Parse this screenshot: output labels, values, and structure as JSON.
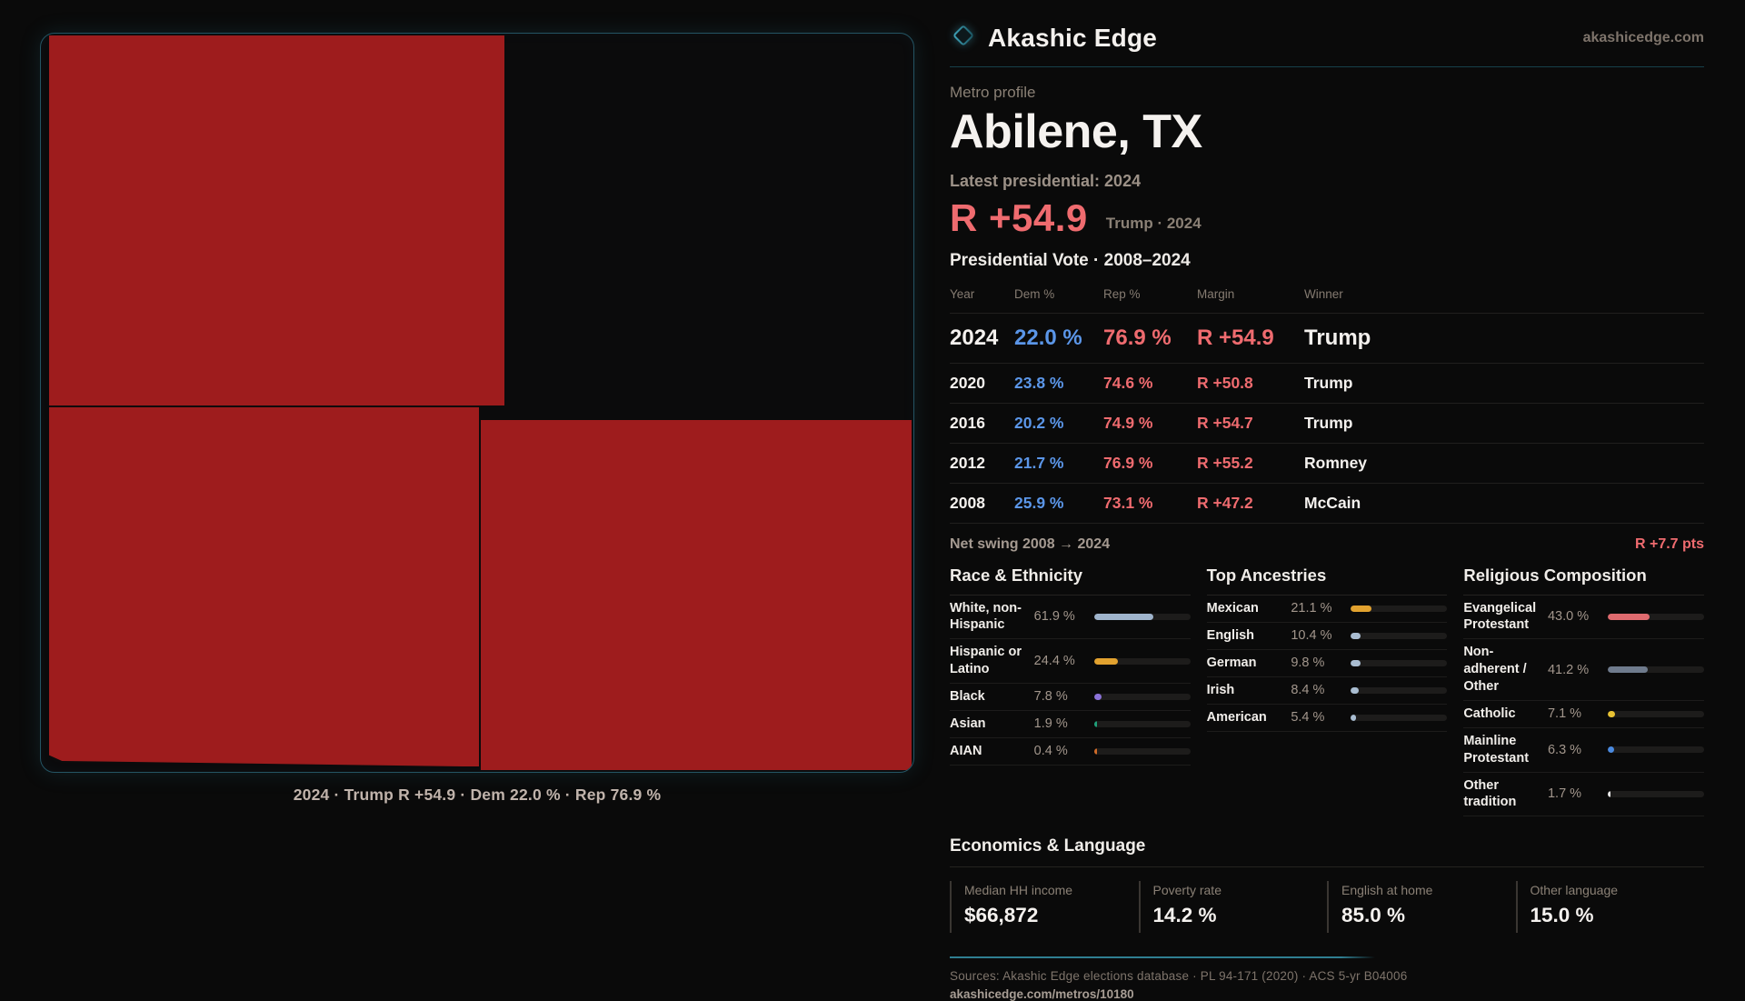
{
  "colors": {
    "accent_red": "#ef6b6f",
    "dem_blue": "#5b96e8",
    "map_red": "#9e1c1d",
    "teal_line": "#2f7e91"
  },
  "header": {
    "brand": "Akashic Edge",
    "site": "akashicedge.com"
  },
  "profile": {
    "kicker": "Metro profile",
    "title": "Abilene, TX",
    "latest_label": "Latest presidential: 2024",
    "headline_margin": "R +54.9",
    "headline_sub": "Trump · 2024"
  },
  "map": {
    "caption": "2024 · Trump R +54.9 · Dem 22.0 % · Rep 76.9 %",
    "counties": [
      "county-northwest",
      "county-southwest",
      "county-southeast"
    ]
  },
  "vote_table": {
    "title": "Presidential Vote · 2008–2024",
    "columns": [
      "Year",
      "Dem %",
      "Rep %",
      "Margin",
      "Winner"
    ],
    "rows": [
      {
        "year": "2024",
        "dem": "22.0 %",
        "rep": "76.9 %",
        "margin": "R +54.9",
        "winner": "Trump",
        "emphasis": true
      },
      {
        "year": "2020",
        "dem": "23.8 %",
        "rep": "74.6 %",
        "margin": "R +50.8",
        "winner": "Trump",
        "emphasis": false
      },
      {
        "year": "2016",
        "dem": "20.2 %",
        "rep": "74.9 %",
        "margin": "R +54.7",
        "winner": "Trump",
        "emphasis": false
      },
      {
        "year": "2012",
        "dem": "21.7 %",
        "rep": "76.9 %",
        "margin": "R +55.2",
        "winner": "Romney",
        "emphasis": false
      },
      {
        "year": "2008",
        "dem": "25.9 %",
        "rep": "73.1 %",
        "margin": "R +47.2",
        "winner": "McCain",
        "emphasis": false
      }
    ]
  },
  "net_swing": {
    "label": "Net swing 2008 → 2024",
    "value": "R +7.7 pts"
  },
  "demographics": [
    {
      "title": "Race & Ethnicity",
      "rows": [
        {
          "label": "White, non-Hispanic",
          "value": "61.9 %",
          "pct": 61.9,
          "color": "#9fb4cc"
        },
        {
          "label": "Hispanic or Latino",
          "value": "24.4 %",
          "pct": 24.4,
          "color": "#e2a22f"
        },
        {
          "label": "Black",
          "value": "7.8 %",
          "pct": 7.8,
          "color": "#8b72d8"
        },
        {
          "label": "Asian",
          "value": "1.9 %",
          "pct": 1.9,
          "color": "#1fa07a"
        },
        {
          "label": "AIAN",
          "value": "0.4 %",
          "pct": 0.4,
          "color": "#cf6b28"
        }
      ]
    },
    {
      "title": "Top Ancestries",
      "rows": [
        {
          "label": "Mexican",
          "value": "21.1 %",
          "pct": 21.1,
          "color": "#e2a22f"
        },
        {
          "label": "English",
          "value": "10.4 %",
          "pct": 10.4,
          "color": "#a9bdd1"
        },
        {
          "label": "German",
          "value": "9.8 %",
          "pct": 9.8,
          "color": "#a9bdd1"
        },
        {
          "label": "Irish",
          "value": "8.4 %",
          "pct": 8.4,
          "color": "#a9bdd1"
        },
        {
          "label": "American",
          "value": "5.4 %",
          "pct": 5.4,
          "color": "#a9bdd1"
        }
      ]
    },
    {
      "title": "Religious Composition",
      "rows": [
        {
          "label": "Evangelical Protestant",
          "value": "43.0 %",
          "pct": 43.0,
          "color": "#de6a6e"
        },
        {
          "label": "Non-adherent / Other",
          "value": "41.2 %",
          "pct": 41.2,
          "color": "#6f7b8d"
        },
        {
          "label": "Catholic",
          "value": "7.1 %",
          "pct": 7.1,
          "color": "#e8c233"
        },
        {
          "label": "Mainline Protestant",
          "value": "6.3 %",
          "pct": 6.3,
          "color": "#4a8ae0"
        },
        {
          "label": "Other tradition",
          "value": "1.7 %",
          "pct": 1.7,
          "color": "#e8e8e8"
        }
      ]
    }
  ],
  "economics": {
    "title": "Economics & Language",
    "stats": [
      {
        "label": "Median HH income",
        "value": "$66,872"
      },
      {
        "label": "Poverty rate",
        "value": "14.2 %"
      },
      {
        "label": "English at home",
        "value": "85.0 %"
      },
      {
        "label": "Other language",
        "value": "15.0 %"
      }
    ]
  },
  "footer": {
    "sources": "Sources: Akashic Edge elections database · PL 94-171 (2020) · ACS 5-yr B04006",
    "url": "akashicedge.com/metros/10180"
  }
}
